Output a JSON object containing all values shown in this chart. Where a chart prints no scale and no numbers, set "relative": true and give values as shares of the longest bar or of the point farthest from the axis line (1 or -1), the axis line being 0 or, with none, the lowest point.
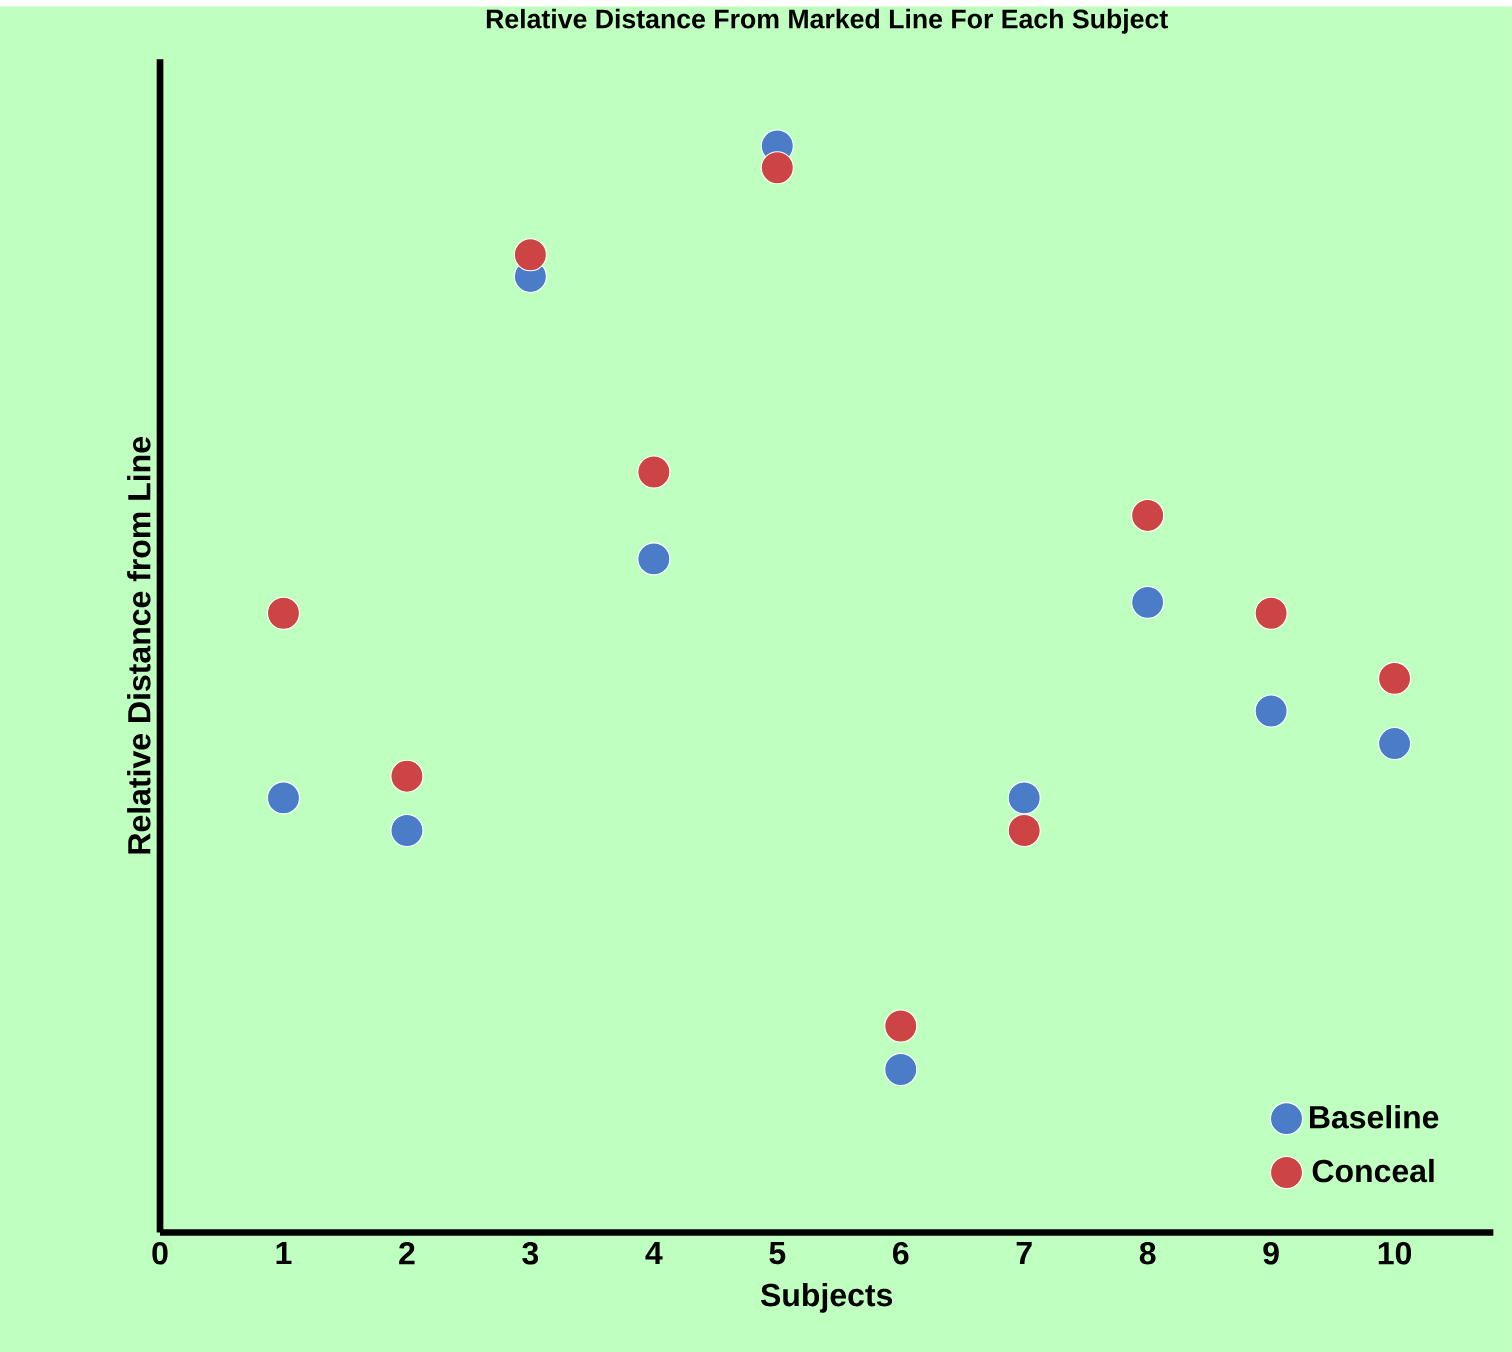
{
  "chart_data": {
    "type": "scatter",
    "title": "Relative Distance From Marked Line For Each Subject",
    "xlabel": "Subjects",
    "ylabel": "Relative Distance from Line",
    "relative": true,
    "x": [
      1,
      2,
      3,
      4,
      5,
      6,
      7,
      8,
      9,
      10
    ],
    "xlim": [
      0,
      10.8
    ],
    "xticks": [
      0,
      1,
      2,
      3,
      4,
      5,
      6,
      7,
      8,
      9,
      10
    ],
    "marker": "circle",
    "legend": "bottom right",
    "grid": false,
    "series": [
      {
        "name": "Baseline",
        "color": "#4a7cc7",
        "values": [
          0.4,
          0.37,
          0.88,
          0.62,
          1.0,
          0.15,
          0.4,
          0.58,
          0.48,
          0.45
        ]
      },
      {
        "name": "Conceal",
        "color": "#cc4444",
        "values": [
          0.57,
          0.42,
          0.9,
          0.7,
          0.98,
          0.19,
          0.37,
          0.66,
          0.57,
          0.51
        ]
      }
    ]
  }
}
